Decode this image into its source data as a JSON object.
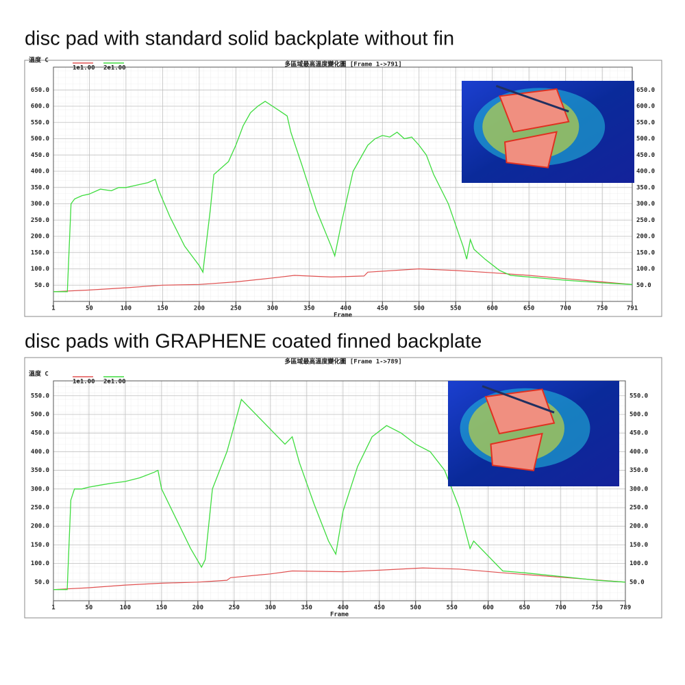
{
  "chart_data": [
    {
      "type": "line",
      "title": "disc pad with standard solid backplate without fin",
      "subtitle": "多區域最高溫度變化圖 [Frame 1->791]",
      "y_label": "溫度 C",
      "x_label": "Frame",
      "xlim": [
        1,
        791
      ],
      "xticks": [
        1,
        50,
        100,
        150,
        200,
        250,
        300,
        350,
        400,
        450,
        500,
        550,
        600,
        650,
        700,
        750,
        791
      ],
      "ylim": [
        0,
        720
      ],
      "yticks": [
        {
          "value": 50,
          "label": "50.0"
        },
        {
          "value": 100,
          "label": "100.0"
        },
        {
          "value": 150,
          "label": "150.0"
        },
        {
          "value": 200,
          "label": "200.0"
        },
        {
          "value": 250,
          "label": "250.0"
        },
        {
          "value": 300,
          "label": "300.0"
        },
        {
          "value": 350,
          "label": "350.0"
        },
        {
          "value": 400,
          "label": "400.0"
        },
        {
          "value": 450,
          "label": "450.0"
        },
        {
          "value": 500,
          "label": "500.0"
        },
        {
          "value": 550,
          "label": "550.0"
        },
        {
          "value": 600,
          "label": "600.0"
        },
        {
          "value": 650,
          "label": "650.0"
        }
      ],
      "grid": true,
      "series": [
        {
          "name": "1e1.00",
          "color": "#e05050",
          "x": [
            1,
            50,
            100,
            150,
            200,
            250,
            300,
            330,
            380,
            425,
            430,
            500,
            550,
            600,
            650,
            700,
            750,
            791
          ],
          "values": [
            30,
            35,
            42,
            50,
            52,
            60,
            72,
            80,
            75,
            78,
            90,
            100,
            95,
            88,
            80,
            70,
            60,
            52
          ]
        },
        {
          "name": "2e1.00",
          "color": "#3ddc3d",
          "x": [
            1,
            20,
            25,
            30,
            40,
            50,
            65,
            80,
            90,
            100,
            110,
            120,
            130,
            140,
            145,
            160,
            180,
            200,
            205,
            215,
            220,
            240,
            250,
            260,
            270,
            280,
            290,
            300,
            310,
            320,
            325,
            340,
            360,
            380,
            385,
            395,
            410,
            420,
            430,
            440,
            450,
            460,
            470,
            480,
            490,
            500,
            510,
            520,
            540,
            560,
            565,
            570,
            575,
            590,
            610,
            625,
            650,
            700,
            750,
            791
          ],
          "values": [
            30,
            30,
            300,
            315,
            325,
            330,
            345,
            340,
            350,
            350,
            355,
            360,
            365,
            375,
            340,
            260,
            170,
            110,
            90,
            280,
            390,
            430,
            480,
            540,
            580,
            600,
            615,
            600,
            585,
            570,
            520,
            420,
            280,
            170,
            140,
            250,
            400,
            440,
            480,
            500,
            510,
            505,
            520,
            500,
            505,
            480,
            450,
            390,
            300,
            170,
            130,
            190,
            160,
            130,
            95,
            80,
            75,
            65,
            57,
            52
          ]
        }
      ]
    },
    {
      "type": "line",
      "title": "disc pads with GRAPHENE coated finned backplate",
      "subtitle": "多區域最高溫度變化圖 [Frame 1->789]",
      "y_label": "溫度 C",
      "x_label": "Frame",
      "xlim": [
        1,
        789
      ],
      "xticks": [
        1,
        50,
        100,
        150,
        200,
        250,
        300,
        350,
        400,
        450,
        500,
        550,
        600,
        650,
        700,
        750,
        789
      ],
      "ylim": [
        0,
        590
      ],
      "yticks": [
        {
          "value": 50,
          "label": "50.0"
        },
        {
          "value": 100,
          "label": "100.0"
        },
        {
          "value": 150,
          "label": "150.0"
        },
        {
          "value": 200,
          "label": "200.0"
        },
        {
          "value": 250,
          "label": "250.0"
        },
        {
          "value": 300,
          "label": "300.0"
        },
        {
          "value": 350,
          "label": "350.0"
        },
        {
          "value": 400,
          "label": "400.0"
        },
        {
          "value": 450,
          "label": "450.0"
        },
        {
          "value": 500,
          "label": "500.0"
        },
        {
          "value": 550,
          "label": "550.0"
        }
      ],
      "grid": true,
      "series": [
        {
          "name": "1e1.00",
          "color": "#e05050",
          "x": [
            1,
            50,
            100,
            150,
            200,
            240,
            245,
            300,
            330,
            400,
            450,
            510,
            560,
            620,
            700,
            789
          ],
          "values": [
            30,
            35,
            42,
            47,
            50,
            55,
            62,
            72,
            80,
            78,
            82,
            88,
            85,
            75,
            63,
            50
          ]
        },
        {
          "name": "2e1.00",
          "color": "#3ddc3d",
          "x": [
            1,
            20,
            25,
            30,
            40,
            50,
            65,
            80,
            100,
            120,
            140,
            145,
            150,
            170,
            190,
            205,
            210,
            220,
            240,
            250,
            260,
            270,
            290,
            310,
            320,
            330,
            340,
            360,
            380,
            390,
            400,
            420,
            440,
            460,
            480,
            500,
            520,
            540,
            560,
            575,
            580,
            600,
            620,
            650,
            700,
            750,
            789
          ],
          "values": [
            30,
            30,
            270,
            300,
            300,
            305,
            310,
            315,
            320,
            330,
            345,
            350,
            300,
            220,
            140,
            90,
            110,
            300,
            400,
            470,
            540,
            520,
            480,
            440,
            420,
            440,
            370,
            260,
            160,
            125,
            240,
            360,
            440,
            470,
            450,
            420,
            400,
            350,
            250,
            140,
            160,
            120,
            80,
            75,
            65,
            55,
            50
          ]
        }
      ]
    }
  ]
}
